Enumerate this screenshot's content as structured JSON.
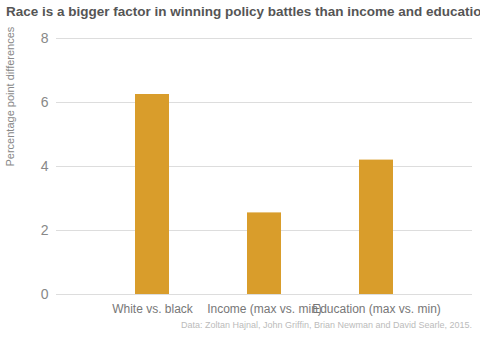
{
  "chart_data": {
    "type": "bar",
    "title": "Race is a bigger factor in winning policy battles than income and education",
    "y_label": "Percentage point differences in enactment of policy preferences",
    "caption": "Data: Zoltan Hajnal, John Griffin, Brian Newman and David Searle, 2015.",
    "categories": [
      "White vs. black",
      "Income (max vs. min)",
      "Education (max vs. min)"
    ],
    "values": [
      6.25,
      2.55,
      4.2
    ],
    "color": "#d99d2b",
    "ylim": [
      0,
      8
    ],
    "yticks": [
      0,
      2,
      4,
      6,
      8
    ],
    "grid": true
  }
}
